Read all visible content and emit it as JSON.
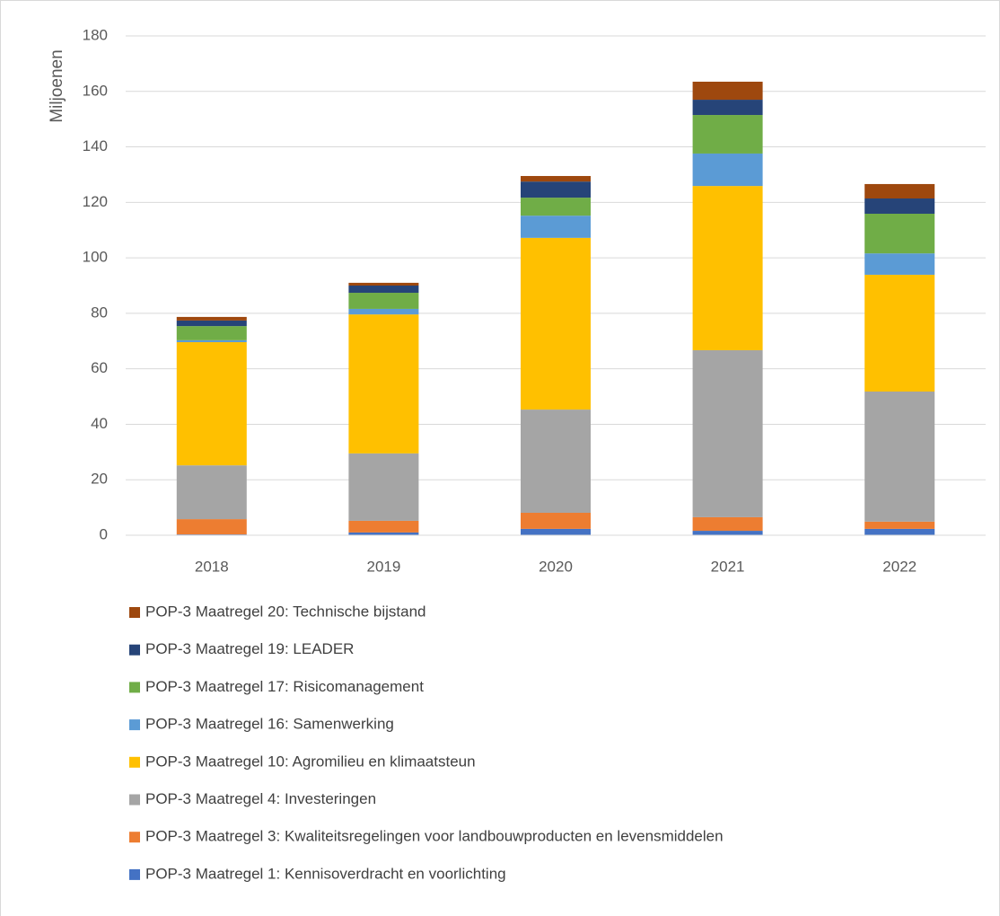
{
  "chart_data": {
    "type": "stacked_bar",
    "y_label": "Miljoenen",
    "categories": [
      "2018",
      "2019",
      "2020",
      "2021",
      "2022"
    ],
    "ylim": [
      0,
      180
    ],
    "yticks": [
      0,
      20,
      40,
      60,
      80,
      100,
      120,
      140,
      160,
      180
    ],
    "grid": true,
    "series": [
      {
        "name": "POP-3 Maatregel 1: Kennisoverdracht en voorlichting",
        "color": "#4472c4",
        "values": [
          0.3,
          1.0,
          2.3,
          1.6,
          2.3
        ]
      },
      {
        "name": "POP-3 Maatregel 3: Kwaliteitsregelingen voor landbouwproducten en levensmiddelen",
        "color": "#ed7d31",
        "values": [
          5.5,
          4.2,
          5.8,
          4.9,
          2.6
        ]
      },
      {
        "name": "POP-3 Maatregel 4: Investeringen",
        "color": "#a5a5a5",
        "values": [
          19.4,
          24.3,
          37.2,
          60.2,
          46.9
        ]
      },
      {
        "name": "POP-3 Maatregel 10: Agromilieu en klimaatsteun",
        "color": "#ffc000",
        "values": [
          44.4,
          50.1,
          61.9,
          59.2,
          42.1
        ]
      },
      {
        "name": "POP-3 Maatregel 16: Samenwerking",
        "color": "#5b9bd5",
        "values": [
          0.7,
          2.0,
          8.0,
          11.7,
          7.7
        ]
      },
      {
        "name": "POP-3 Maatregel 17: Risicomanagement",
        "color": "#70ad47",
        "values": [
          5.1,
          5.8,
          6.5,
          13.9,
          14.3
        ]
      },
      {
        "name": "POP-3 Maatregel 19: LEADER",
        "color": "#264478",
        "values": [
          2.0,
          2.6,
          5.8,
          5.5,
          5.5
        ]
      },
      {
        "name": "POP-3 Maatregel 20: Technische bijstand",
        "color": "#9e480e",
        "values": [
          1.3,
          1.0,
          2.0,
          6.5,
          5.2
        ]
      }
    ]
  }
}
